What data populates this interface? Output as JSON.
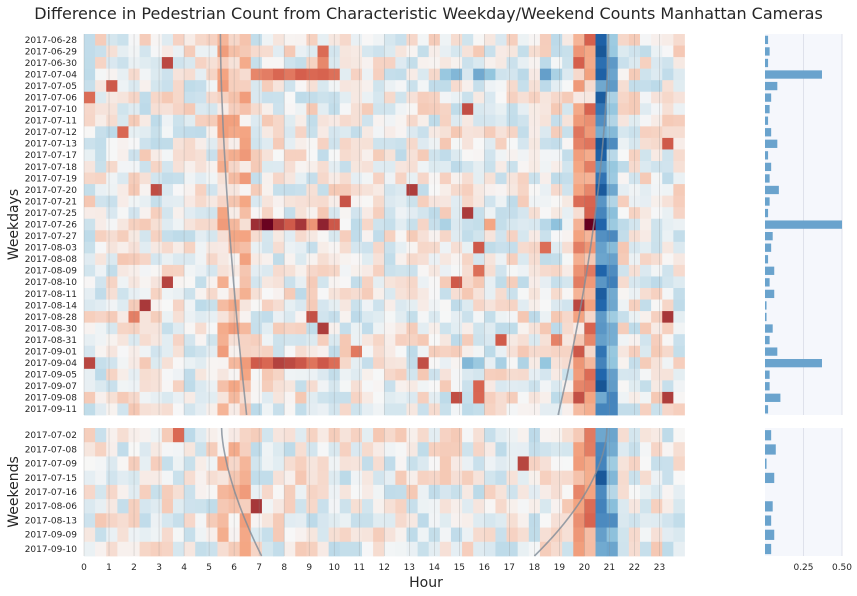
{
  "chart_data": {
    "type": "heatmap",
    "title": "Difference in Pedestrian Count from Characteristic Weekday/Weekend Counts Manhattan Cameras",
    "xlabel": "Hour",
    "x_ticks": [
      "0",
      "1",
      "2",
      "3",
      "4",
      "5",
      "6",
      "7",
      "8",
      "9",
      "10",
      "11",
      "12",
      "13",
      "14",
      "15",
      "16",
      "17",
      "18",
      "19",
      "20",
      "21",
      "22",
      "23"
    ],
    "bar_axis_ticks": [
      "0.25",
      "0.50"
    ],
    "bar_axis_range": [
      0,
      0.5
    ],
    "colormap": "diverging red-white-blue",
    "colors": {
      "positive": "#67001f",
      "neutral": "#f7f7f7",
      "negative": "#053061",
      "bar": "#6aa3cd",
      "bar_background": "#f5f7fc",
      "curve": "#7f8c99"
    },
    "panels": [
      {
        "ylabel": "Weekdays",
        "rows": [
          "2017-06-28",
          "2017-06-29",
          "2017-06-30",
          "2017-07-04",
          "2017-07-05",
          "2017-07-06",
          "2017-07-10",
          "2017-07-11",
          "2017-07-12",
          "2017-07-13",
          "2017-07-17",
          "2017-07-18",
          "2017-07-19",
          "2017-07-20",
          "2017-07-21",
          "2017-07-25",
          "2017-07-26",
          "2017-07-27",
          "2017-08-03",
          "2017-08-08",
          "2017-08-09",
          "2017-08-10",
          "2017-08-11",
          "2017-08-14",
          "2017-08-28",
          "2017-08-30",
          "2017-08-31",
          "2017-09-01",
          "2017-09-04",
          "2017-09-05",
          "2017-09-07",
          "2017-09-08",
          "2017-09-11"
        ],
        "bar_values": [
          0.02,
          0.03,
          0.02,
          0.37,
          0.08,
          0.04,
          0.03,
          0.02,
          0.04,
          0.08,
          0.02,
          0.04,
          0.03,
          0.09,
          0.03,
          0.02,
          0.5,
          0.05,
          0.04,
          0.02,
          0.06,
          0.03,
          0.06,
          0.01,
          0.01,
          0.05,
          0.03,
          0.08,
          0.37,
          0.03,
          0.03,
          0.1,
          0.02
        ]
      },
      {
        "ylabel": "Weekends",
        "rows": [
          "2017-07-02",
          "2017-07-08",
          "2017-07-09",
          "2017-07-15",
          "2017-07-16",
          "2017-08-06",
          "2017-08-13",
          "2017-09-09",
          "2017-09-10"
        ],
        "bar_values": [
          0.04,
          0.07,
          0.01,
          0.06,
          0.0,
          0.05,
          0.04,
          0.06,
          0.04
        ]
      }
    ]
  }
}
